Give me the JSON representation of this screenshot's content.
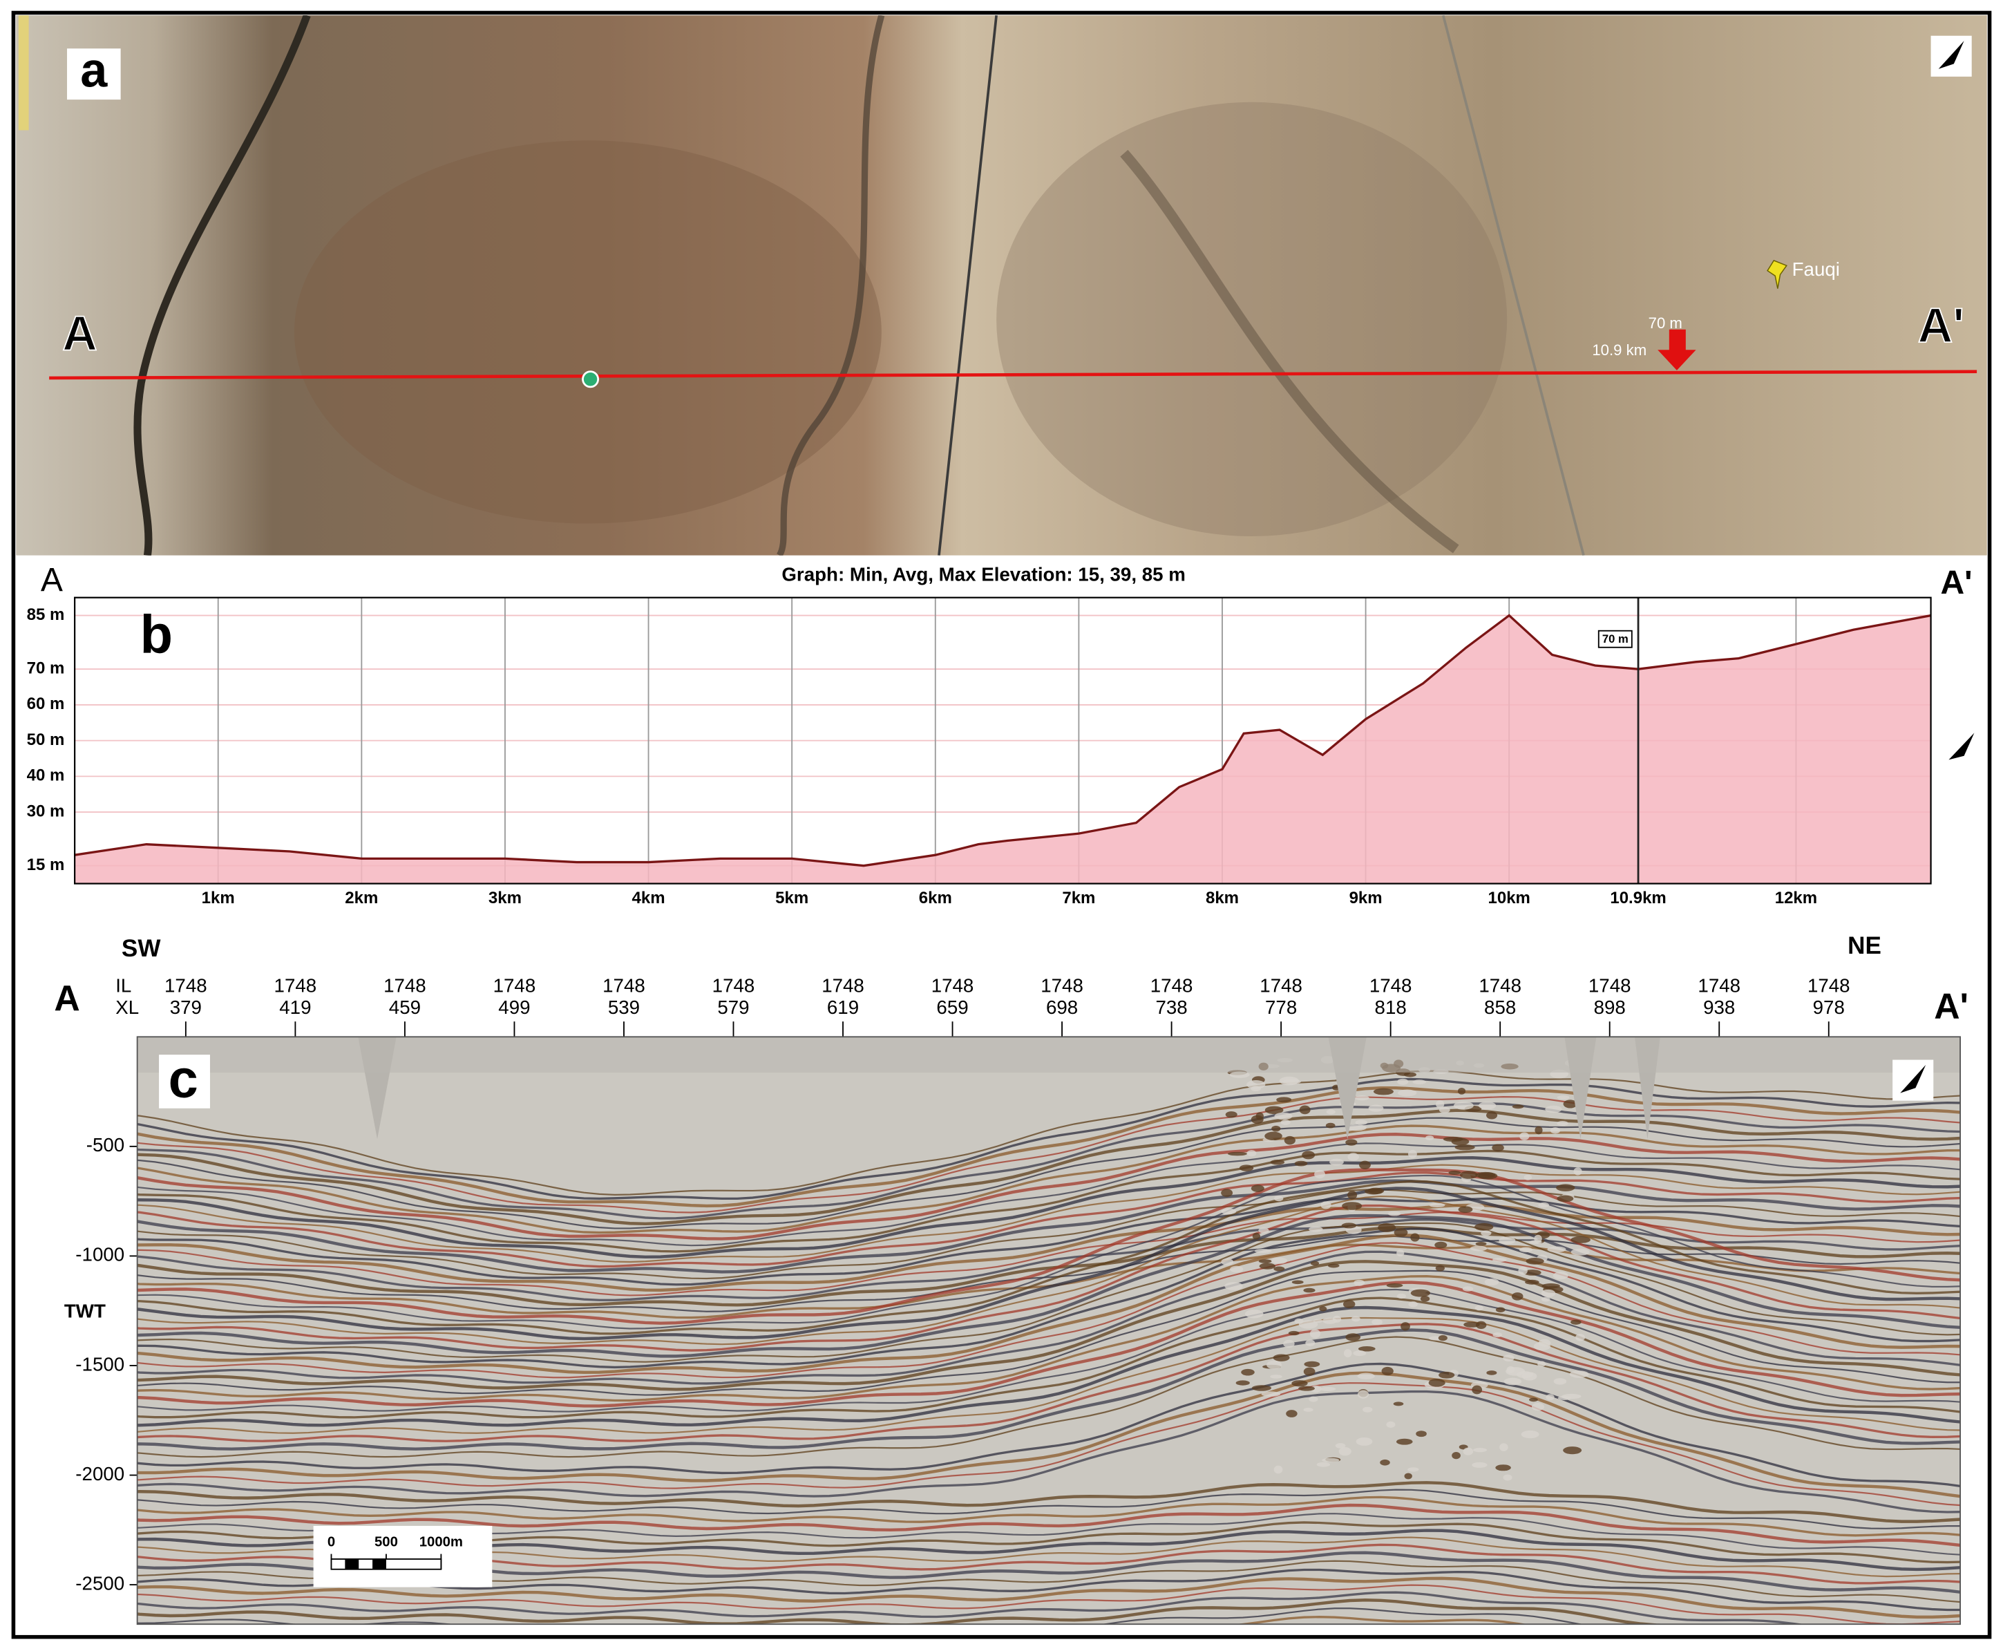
{
  "map_panel": {
    "panel_label": "a",
    "start_label": "A",
    "end_label": "A'",
    "place_label": "Fauqi",
    "marker_elevation": "70 m",
    "marker_distance": "10.9 km"
  },
  "chart_data": [
    {
      "type": "area",
      "panel_label": "b",
      "title": "Graph: Min, Avg, Max Elevation: 15, 39, 85 m",
      "start_label": "A",
      "end_label": "A'",
      "x": [
        0,
        0.5,
        1,
        1.5,
        2,
        2.5,
        3,
        3.5,
        4,
        4.5,
        5,
        5.5,
        6,
        6.3,
        6.5,
        7,
        7.4,
        7.7,
        8,
        8.15,
        8.4,
        8.7,
        9,
        9.4,
        9.7,
        10,
        10.3,
        10.6,
        10.9,
        11.3,
        11.6,
        12,
        12.4,
        12.94
      ],
      "values": [
        18,
        21,
        20,
        19,
        17,
        17,
        17,
        16,
        16,
        17,
        17,
        15,
        18,
        21,
        22,
        24,
        27,
        37,
        42,
        52,
        53,
        46,
        56,
        66,
        76,
        85,
        74,
        71,
        70,
        72,
        73,
        77,
        81,
        85
      ],
      "color": "#7a1515",
      "fill_color": "#f6b6bf",
      "xlim": [
        0,
        12.94
      ],
      "ylim": [
        10,
        90
      ],
      "xticks": [
        {
          "value": 1,
          "label": "1km"
        },
        {
          "value": 2,
          "label": "2km"
        },
        {
          "value": 3,
          "label": "3km"
        },
        {
          "value": 4,
          "label": "4km"
        },
        {
          "value": 5,
          "label": "5km"
        },
        {
          "value": 6,
          "label": "6km"
        },
        {
          "value": 7,
          "label": "7km"
        },
        {
          "value": 8,
          "label": "8km"
        },
        {
          "value": 9,
          "label": "9km"
        },
        {
          "value": 10,
          "label": "10km"
        },
        {
          "value": 10.9,
          "label": "10.9km"
        },
        {
          "value": 12,
          "label": "12km"
        }
      ],
      "yticks": [
        {
          "value": 15,
          "label": "15 m"
        },
        {
          "value": 30,
          "label": "30 m"
        },
        {
          "value": 40,
          "label": "40 m"
        },
        {
          "value": 50,
          "label": "50 m"
        },
        {
          "value": 60,
          "label": "60 m"
        },
        {
          "value": 70,
          "label": "70 m"
        },
        {
          "value": 85,
          "label": "85 m"
        }
      ],
      "grid": true,
      "annotation": {
        "x": 10.9,
        "text": "70 m"
      }
    },
    {
      "type": "seismic",
      "panel_label": "c",
      "start_label": "A",
      "end_label": "A'",
      "left_direction": "SW",
      "right_direction": "NE",
      "y_label": "TWT",
      "row_labels": [
        "IL",
        "XL"
      ],
      "il": [
        1748,
        1748,
        1748,
        1748,
        1748,
        1748,
        1748,
        1748,
        1748,
        1748,
        1748,
        1748,
        1748,
        1748,
        1748,
        1748
      ],
      "xl": [
        379,
        419,
        459,
        499,
        539,
        579,
        619,
        659,
        698,
        738,
        778,
        818,
        858,
        898,
        938,
        978
      ],
      "ylim": [
        -2680,
        0
      ],
      "yticks": [
        -500,
        -1000,
        -1500,
        -2000,
        -2500
      ],
      "scale_bar": [
        0,
        500,
        {
          "value": 1000,
          "label": "1000m"
        }
      ]
    }
  ]
}
